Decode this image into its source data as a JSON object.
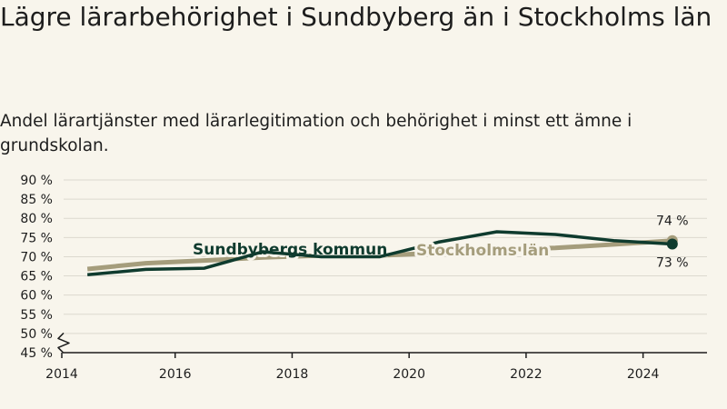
{
  "header": {
    "title": "Lägre lärarbehörighet i Sundbyberg än i Stockholms län",
    "subtitle": "Andel lärartjänster med lärarlegitimation och behörighet i minst ett ämne i grundskolan."
  },
  "colors": {
    "background": "#f8f5ec",
    "sundbyberg": "#0f3b2e",
    "stockholm": "#a59d7c",
    "grid": "#dcd9cf",
    "axis": "#1d1d1d"
  },
  "chart_data": {
    "type": "line",
    "title": "Lägre lärarbehörighet i Sundbyberg än i Stockholms län",
    "subtitle": "Andel lärartjänster med lärarlegitimation och behörighet i minst ett ämne i grundskolan.",
    "xlim": [
      2014,
      2025
    ],
    "ylim": [
      45,
      90
    ],
    "axis_break": true,
    "grid": "horizontal",
    "x_ticks": [
      2014,
      2016,
      2018,
      2020,
      2022,
      2024
    ],
    "y_ticks": [
      {
        "value": 90,
        "label": "90 %"
      },
      {
        "value": 85,
        "label": "85 %"
      },
      {
        "value": 80,
        "label": "80 %"
      },
      {
        "value": 75,
        "label": "75 %"
      },
      {
        "value": 70,
        "label": "70 %"
      },
      {
        "value": 65,
        "label": "65 %"
      },
      {
        "value": 60,
        "label": "60 %"
      },
      {
        "value": 55,
        "label": "55 %"
      },
      {
        "value": 50,
        "label": "50 %"
      },
      {
        "value": 45,
        "label": "45 %"
      }
    ],
    "x": [
      2014.5,
      2015.5,
      2016.5,
      2017.5,
      2018.5,
      2019.5,
      2020.5,
      2021.5,
      2022.5,
      2023.5,
      2024.5
    ],
    "series": [
      {
        "name": "Stockholms län",
        "color": "#a59d7c",
        "values": [
          66.8,
          68.3,
          69.0,
          69.8,
          70.3,
          70.3,
          71.0,
          71.8,
          72.3,
          73.2,
          74.2
        ],
        "end_label": "74 %"
      },
      {
        "name": "Sundbybergs kommun",
        "color": "#0f3b2e",
        "values": [
          65.3,
          66.7,
          67.0,
          71.3,
          70.0,
          70.0,
          73.8,
          76.5,
          75.8,
          74.2,
          73.3
        ],
        "end_label": "73 %"
      }
    ]
  }
}
